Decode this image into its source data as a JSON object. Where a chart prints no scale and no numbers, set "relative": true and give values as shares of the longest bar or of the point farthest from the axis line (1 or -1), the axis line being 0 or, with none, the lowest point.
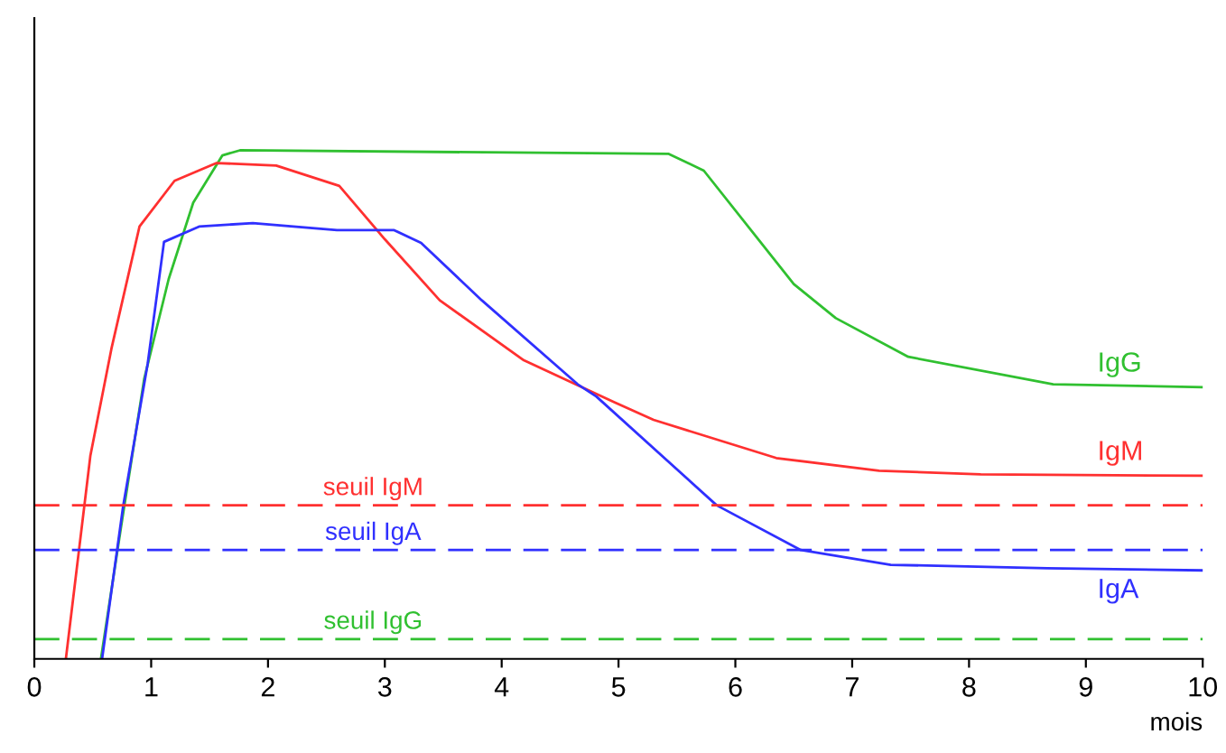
{
  "chart_data": {
    "type": "line",
    "relative": true,
    "xlabel": "mois",
    "xlim": [
      0,
      10
    ],
    "xticks": [
      0,
      1,
      2,
      3,
      4,
      5,
      6,
      7,
      8,
      9,
      10
    ],
    "grid": false,
    "legend": false,
    "marker": "none",
    "line_style": "solid",
    "series": [
      {
        "name": "IgG",
        "color": "#30c030",
        "x": [
          0.57,
          0.74,
          0.94,
          1.15,
          1.36,
          1.61,
          1.76,
          5.43,
          5.73,
          6.5,
          6.86,
          7.48,
          8.72,
          10
        ],
        "values": [
          0,
          0.256,
          0.55,
          0.747,
          0.897,
          0.99,
          1,
          0.993,
          0.96,
          0.737,
          0.67,
          0.594,
          0.54,
          0.534
        ]
      },
      {
        "name": "IgM",
        "color": "#ff3030",
        "x": [
          0.27,
          0.48,
          0.66,
          0.9,
          1.2,
          1.56,
          2.07,
          2.61,
          3.0,
          3.47,
          4.19,
          4.96,
          5.3,
          6.35,
          7.23,
          8.1,
          10
        ],
        "values": [
          0,
          0.4,
          0.61,
          0.85,
          0.94,
          0.975,
          0.97,
          0.93,
          0.825,
          0.705,
          0.587,
          0.505,
          0.47,
          0.395,
          0.37,
          0.363,
          0.36
        ]
      },
      {
        "name": "IgA",
        "color": "#3030ff",
        "x": [
          0.58,
          0.76,
          0.97,
          1.11,
          1.41,
          1.87,
          2.59,
          3.08,
          3.31,
          3.83,
          4.65,
          4.81,
          5.84,
          6.56,
          7.33,
          8.67,
          10
        ],
        "values": [
          0,
          0.3,
          0.58,
          0.82,
          0.85,
          0.857,
          0.843,
          0.843,
          0.818,
          0.705,
          0.54,
          0.516,
          0.302,
          0.214,
          0.185,
          0.178,
          0.174
        ]
      }
    ],
    "ref_lines": [
      {
        "axis": "y",
        "value": 0.302,
        "label": "seuil IgM",
        "color": "#ff3030",
        "line_style": "dashed"
      },
      {
        "axis": "y",
        "value": 0.214,
        "label": "seuil IgA",
        "color": "#3030ff",
        "line_style": "dashed"
      },
      {
        "axis": "y",
        "value": 0.039,
        "label": "seuil IgG",
        "color": "#30c030",
        "line_style": "dashed"
      }
    ]
  }
}
